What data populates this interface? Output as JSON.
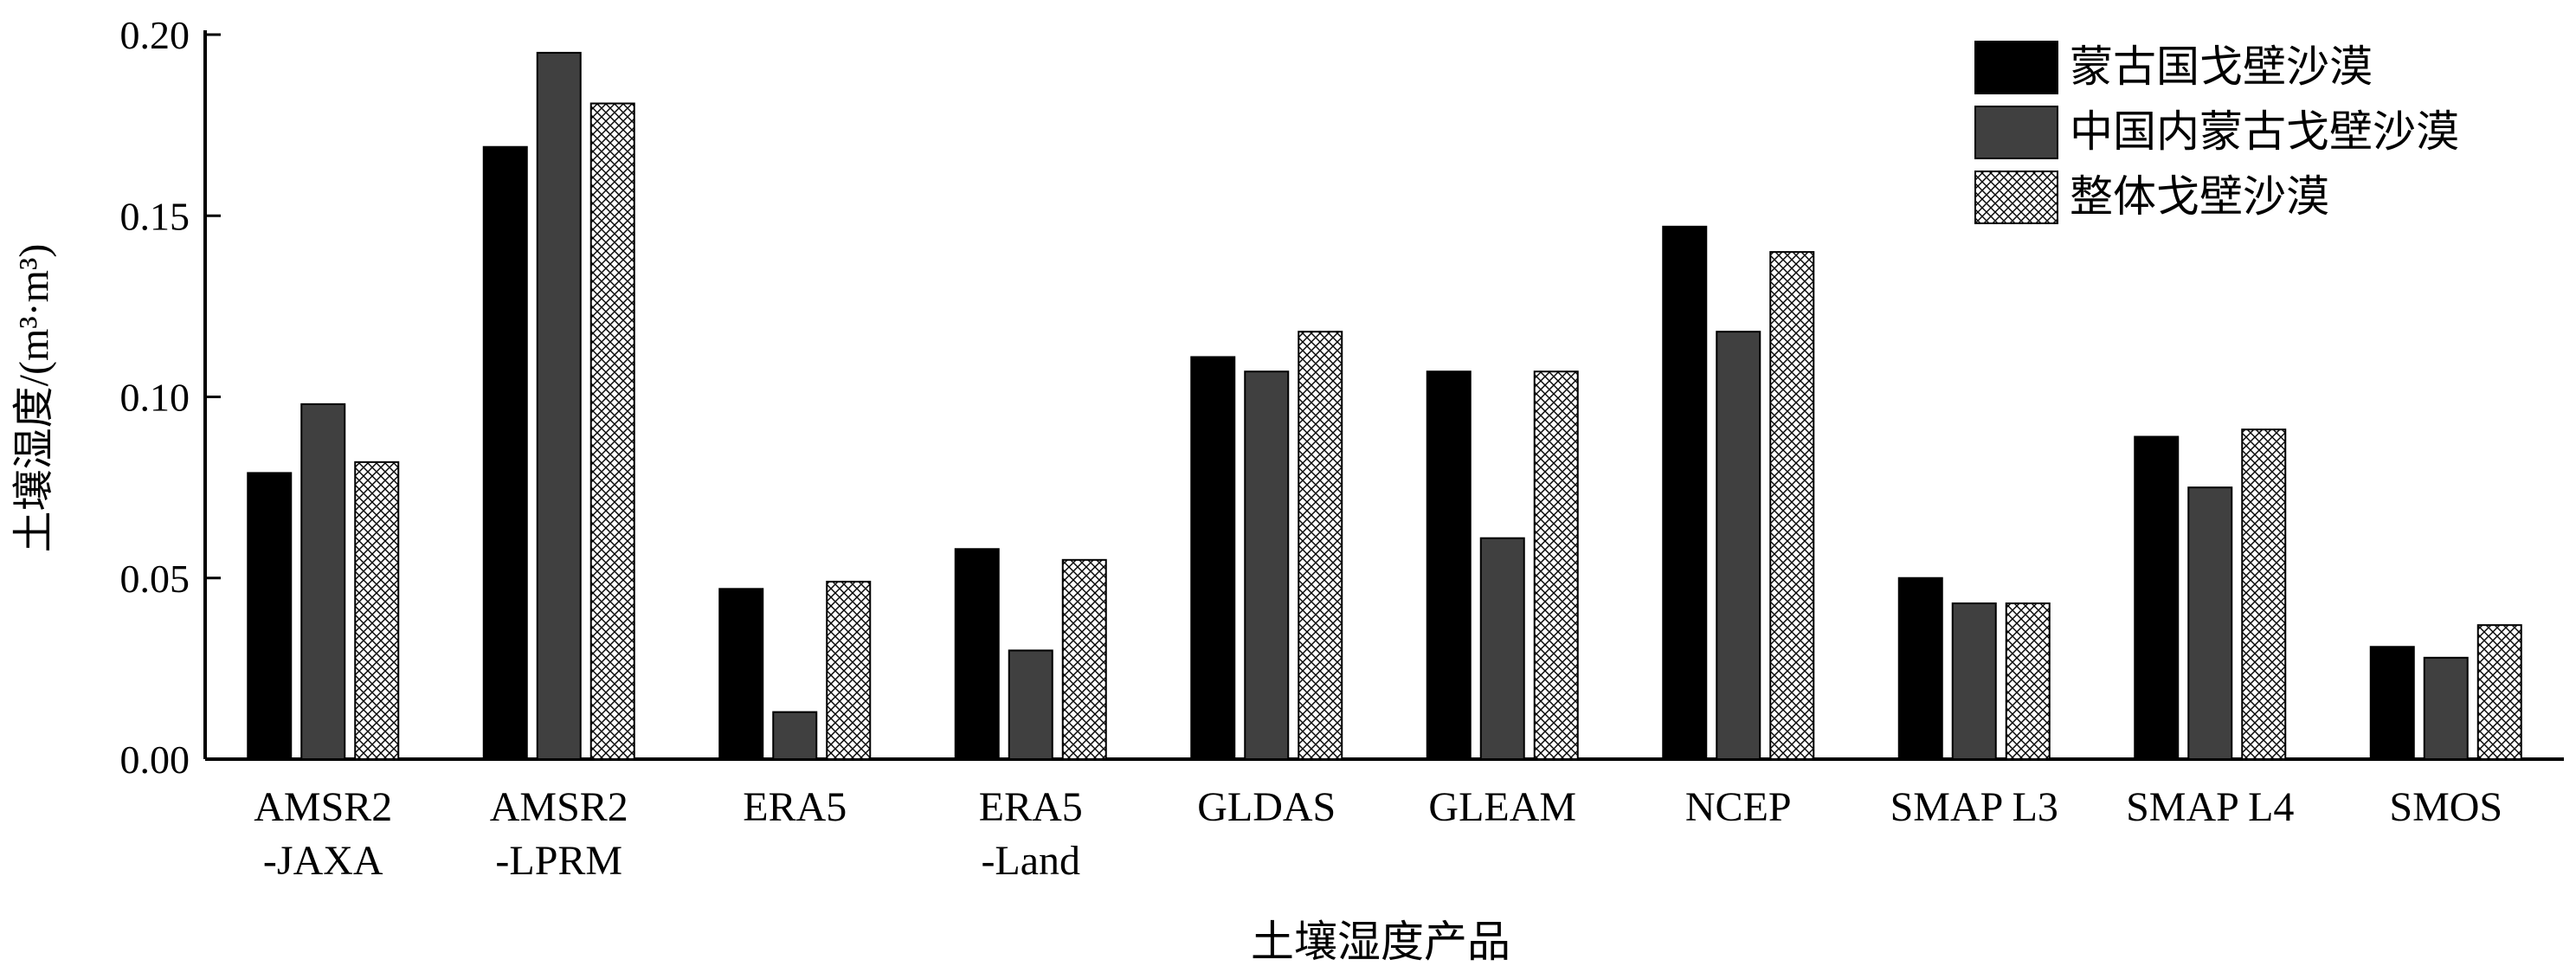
{
  "chart_data": {
    "type": "bar",
    "title": "",
    "xlabel": "土壤湿度产品",
    "ylabel": "土壤湿度/(m³·m³)",
    "ylim": [
      0,
      0.2
    ],
    "yticks": [
      "0.00",
      "0.05",
      "0.10",
      "0.15",
      "0.20"
    ],
    "grid": false,
    "legend_position": "top-right",
    "categories": [
      [
        "AMSR2",
        "-JAXA"
      ],
      [
        "AMSR2",
        "-LPRM"
      ],
      [
        "ERA5"
      ],
      [
        "ERA5",
        "-Land"
      ],
      [
        "GLDAS"
      ],
      [
        "GLEAM"
      ],
      [
        "NCEP"
      ],
      [
        "SMAP L3"
      ],
      [
        "SMAP L4"
      ],
      [
        "SMOS"
      ]
    ],
    "series": [
      {
        "name": "蒙古国戈壁沙漠",
        "fill": "solid",
        "color": "#000000",
        "values": [
          0.079,
          0.169,
          0.047,
          0.058,
          0.111,
          0.107,
          0.147,
          0.05,
          0.089,
          0.031
        ]
      },
      {
        "name": "中国内蒙古戈壁沙漠",
        "fill": "solid",
        "color": "#404040",
        "values": [
          0.098,
          0.195,
          0.013,
          0.03,
          0.107,
          0.061,
          0.118,
          0.043,
          0.075,
          0.028
        ]
      },
      {
        "name": "整体戈壁沙漠",
        "fill": "crosshatch",
        "color": "#ffffff",
        "values": [
          0.082,
          0.181,
          0.049,
          0.055,
          0.118,
          0.107,
          0.14,
          0.043,
          0.091,
          0.037
        ]
      }
    ]
  }
}
